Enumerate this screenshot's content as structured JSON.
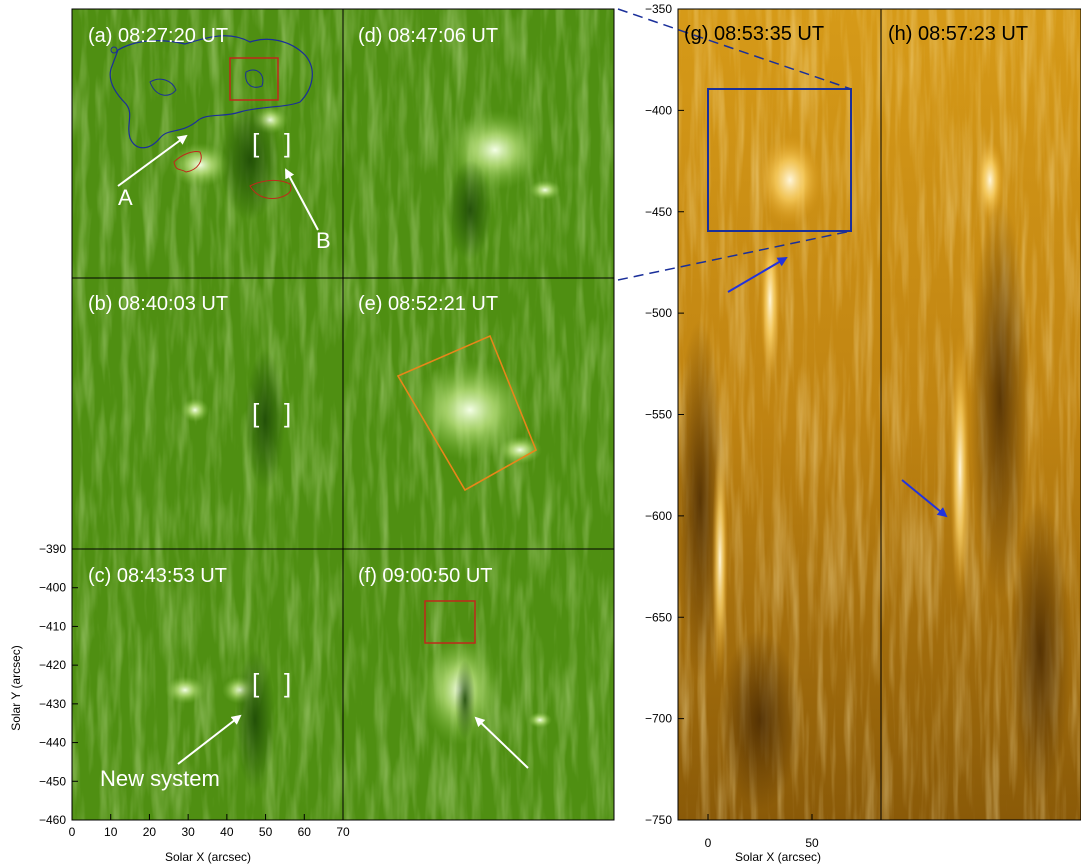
{
  "panels": {
    "a": {
      "label": "(a) 08:27:20 UT"
    },
    "b": {
      "label": "(b) 08:40:03 UT"
    },
    "c": {
      "label": "(c) 08:43:53 UT"
    },
    "d": {
      "label": "(d) 08:47:06 UT"
    },
    "e": {
      "label": "(e) 08:52:21 UT"
    },
    "f": {
      "label": "(f) 09:00:50 UT"
    },
    "g": {
      "label": "(g) 08:53:35 UT"
    },
    "h": {
      "label": "(h) 08:57:23 UT"
    }
  },
  "annotations": {
    "a_marker": "A",
    "b_marker": "B",
    "new_system": "New system",
    "bracket_left": "[",
    "bracket_right": "]"
  },
  "left_axes": {
    "xlabel": "Solar X (arcsec)",
    "ylabel": "Solar Y (arcsec)",
    "xticks": [
      "0",
      "10",
      "20",
      "30",
      "40",
      "50",
      "60",
      "70"
    ],
    "yticks": [
      "−390",
      "−400",
      "−410",
      "−420",
      "−430",
      "−440",
      "−450",
      "−460"
    ]
  },
  "right_axes": {
    "xlabel": "Solar X (arcsec)",
    "xticks": [
      "0",
      "50"
    ],
    "yticks": [
      "−350",
      "−400",
      "−450",
      "−500",
      "−550",
      "−600",
      "−650",
      "−700",
      "−750"
    ]
  },
  "colors": {
    "euv_green": "#4f8f12",
    "euv_gold": "#c98a12",
    "contour_blue": "#1a2f9a",
    "contour_red": "#c0281a",
    "box_orange": "#e8861a",
    "arrow_white": "#ffffff",
    "arrow_blue": "#2233dd"
  }
}
